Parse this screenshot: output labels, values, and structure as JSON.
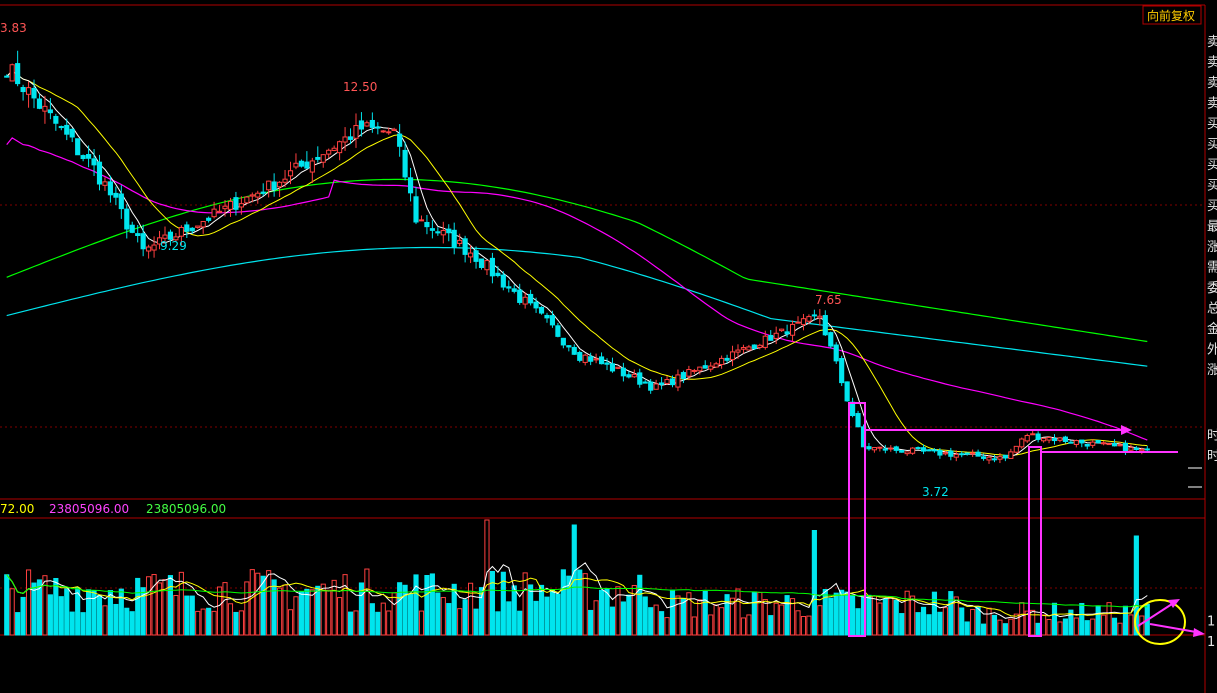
{
  "toolbar": {
    "restore_button": "向前复权"
  },
  "chart_data": {
    "type": "candlestick",
    "price_range": [
      3.2,
      14.2
    ],
    "annotations": {
      "high_left": "3.83",
      "high_mid": "12.50",
      "low_left": "9.29",
      "high_right": "7.65",
      "low_right": "3.72"
    },
    "volume_header": {
      "v1": "72.00",
      "v2": "23805096.00",
      "v3": "23805096.00"
    },
    "side_labels": [
      "卖",
      "卖",
      "卖",
      "卖",
      "买",
      "买",
      "买",
      "买",
      "买",
      "最",
      "涨",
      "需",
      "委",
      "总",
      "金",
      "外",
      "涨",
      "时",
      "时",
      "1",
      "1"
    ],
    "colors": {
      "up": "#ff4040",
      "down": "#00e5ee",
      "ma_short": "#ffffff",
      "ma_mid": "#ffff00",
      "ma_60": "#ff00ff",
      "ma_120": "#00ff00",
      "ma_250": "#00e5ee",
      "highlight": "#ff33ff",
      "circle": "#ffff00",
      "grid": "#b00000"
    },
    "segments": [
      {
        "bars": 18,
        "from": 13.3,
        "to": 10.6
      },
      {
        "bars": 8,
        "from": 10.6,
        "to": 8.8
      },
      {
        "bars": 24,
        "from": 8.8,
        "to": 10.4
      },
      {
        "bars": 16,
        "from": 10.4,
        "to": 11.7
      },
      {
        "bars": 6,
        "from": 11.7,
        "to": 11.6
      },
      {
        "bars": 4,
        "from": 11.6,
        "to": 9.6
      },
      {
        "bars": 10,
        "from": 9.6,
        "to": 8.8
      },
      {
        "bars": 20,
        "from": 8.8,
        "to": 6.4
      },
      {
        "bars": 14,
        "from": 6.4,
        "to": 5.6
      },
      {
        "bars": 30,
        "from": 5.6,
        "to": 7.3
      },
      {
        "bars": 8,
        "from": 7.3,
        "to": 4.2
      },
      {
        "bars": 26,
        "from": 4.2,
        "to": 3.95
      },
      {
        "bars": 4,
        "from": 3.95,
        "to": 4.5
      },
      {
        "bars": 22,
        "from": 4.5,
        "to": 4.1
      }
    ],
    "volume_spikes": [
      {
        "bar": 88,
        "value": 1.4
      },
      {
        "bar": 104,
        "value": 1.0
      },
      {
        "bar": 148,
        "value": 0.95
      },
      {
        "bar": 207,
        "value": 0.9
      },
      {
        "bar": 222,
        "value": 0.55
      },
      {
        "bar": 223,
        "value": 0.5
      }
    ]
  }
}
